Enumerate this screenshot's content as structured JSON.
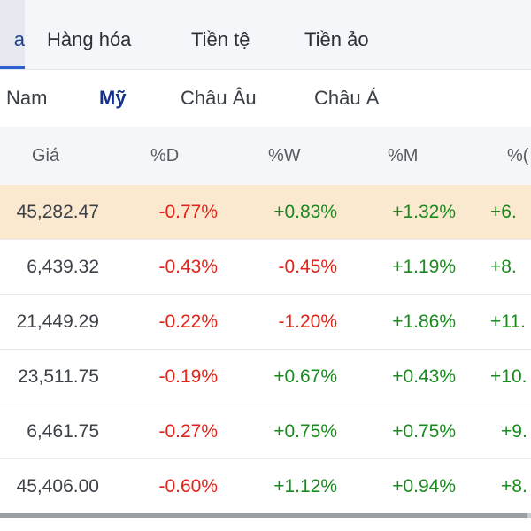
{
  "category_tabs": [
    {
      "label": "a",
      "active": true
    },
    {
      "label": "Hàng hóa",
      "active": false
    },
    {
      "label": "Tiền tệ",
      "active": false
    },
    {
      "label": "Tiền ảo",
      "active": false
    }
  ],
  "region_tabs": [
    {
      "label": "Nam",
      "active": false
    },
    {
      "label": "Mỹ",
      "active": true
    },
    {
      "label": "Châu Âu",
      "active": false
    },
    {
      "label": "Châu Á",
      "active": false
    }
  ],
  "table": {
    "headers": {
      "price": "Giá",
      "d": "%D",
      "w": "%W",
      "m": "%M",
      "y": "%("
    },
    "rows": [
      {
        "price": "45,282.47",
        "d": "-0.77%",
        "w": "+0.83%",
        "m": "+1.32%",
        "y": "+6.",
        "highlighted": true
      },
      {
        "price": "6,439.32",
        "d": "-0.43%",
        "w": "-0.45%",
        "m": "+1.19%",
        "y": "+8."
      },
      {
        "price": "21,449.29",
        "d": "-0.22%",
        "w": "-1.20%",
        "m": "+1.86%",
        "y": "+11."
      },
      {
        "price": "23,511.75",
        "d": "-0.19%",
        "w": "+0.67%",
        "m": "+0.43%",
        "y": "+10."
      },
      {
        "price": "6,461.75",
        "d": "-0.27%",
        "w": "+0.75%",
        "m": "+0.75%",
        "y": "+9."
      },
      {
        "price": "45,406.00",
        "d": "-0.60%",
        "w": "+1.12%",
        "m": "+0.94%",
        "y": "+8."
      }
    ]
  },
  "colors": {
    "negative": "#e0241a",
    "positive": "#1a8a1f",
    "highlight_row": "#fbe9cf",
    "active_tab": "#15328a"
  }
}
